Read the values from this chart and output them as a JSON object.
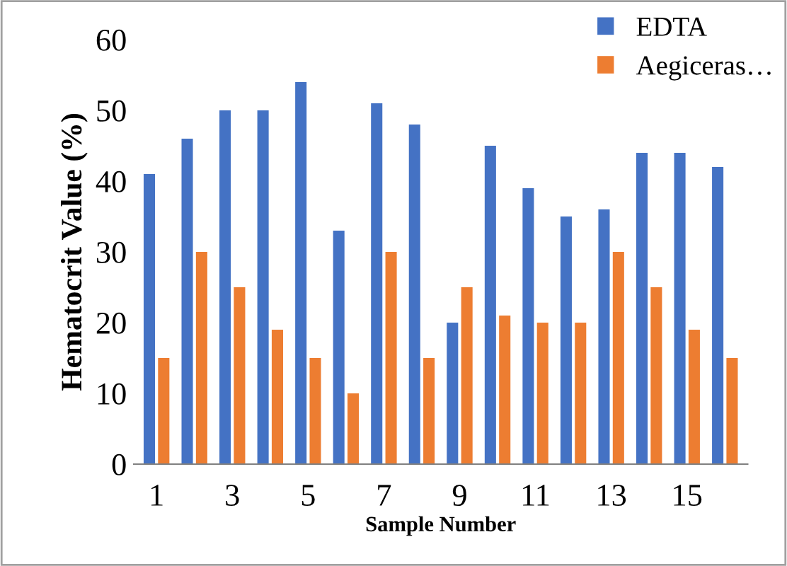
{
  "chart_data": {
    "type": "bar",
    "xlabel": "Sample Number",
    "ylabel": "Hematocrit Value (%)",
    "categories": [
      "1",
      null,
      "3",
      null,
      "5",
      null,
      "7",
      null,
      "9",
      null,
      "11",
      null,
      "13",
      null,
      "15",
      null
    ],
    "series": [
      {
        "name": "EDTA",
        "color": "#4472c4",
        "values": [
          41,
          46,
          50,
          50,
          54,
          33,
          51,
          48,
          20,
          45,
          39,
          35,
          36,
          44,
          44,
          42
        ]
      },
      {
        "name": "Aegiceras…",
        "color": "#ed7d31",
        "values": [
          15,
          30,
          25,
          19,
          15,
          10,
          30,
          15,
          25,
          21,
          20,
          20,
          30,
          25,
          19,
          15
        ]
      }
    ],
    "ylim": [
      0,
      60
    ],
    "yticks": [
      0,
      10,
      20,
      30,
      40,
      50,
      60
    ],
    "grid": false,
    "legend": "top right"
  }
}
